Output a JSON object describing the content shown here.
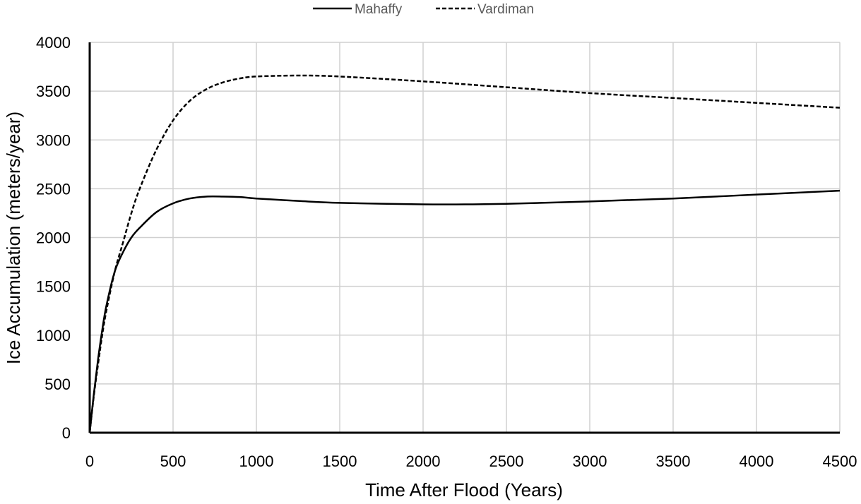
{
  "chart_data": {
    "type": "line",
    "title": "",
    "xlabel": "Time After Flood (Years)",
    "ylabel": "Ice Accumulation (meters/year)",
    "xlim": [
      0,
      4500
    ],
    "ylim": [
      0,
      4000
    ],
    "xticks": [
      0,
      500,
      1000,
      1500,
      2000,
      2500,
      3000,
      3500,
      4000,
      4500
    ],
    "yticks": [
      0,
      500,
      1000,
      1500,
      2000,
      2500,
      3000,
      3500,
      4000
    ],
    "grid": true,
    "legend": "top-center",
    "series": [
      {
        "name": "Mahaffy",
        "style": "solid",
        "x": [
          0,
          25,
          50,
          75,
          100,
          150,
          200,
          250,
          300,
          400,
          500,
          600,
          700,
          800,
          900,
          1000,
          1250,
          1500,
          2000,
          2250,
          2500,
          3000,
          3500,
          4000,
          4500
        ],
        "y": [
          0,
          400,
          750,
          1050,
          1300,
          1650,
          1850,
          2000,
          2100,
          2260,
          2350,
          2400,
          2420,
          2420,
          2415,
          2400,
          2375,
          2355,
          2340,
          2340,
          2345,
          2370,
          2400,
          2440,
          2480
        ]
      },
      {
        "name": "Vardiman",
        "style": "dashed",
        "x": [
          0,
          25,
          50,
          75,
          100,
          150,
          200,
          250,
          300,
          400,
          500,
          600,
          700,
          800,
          900,
          1000,
          1250,
          1500,
          2000,
          2500,
          3000,
          3500,
          4000,
          4500
        ],
        "y": [
          0,
          380,
          700,
          1000,
          1250,
          1650,
          1950,
          2250,
          2500,
          2900,
          3200,
          3400,
          3520,
          3590,
          3630,
          3650,
          3660,
          3650,
          3600,
          3540,
          3480,
          3430,
          3380,
          3330
        ]
      }
    ]
  }
}
